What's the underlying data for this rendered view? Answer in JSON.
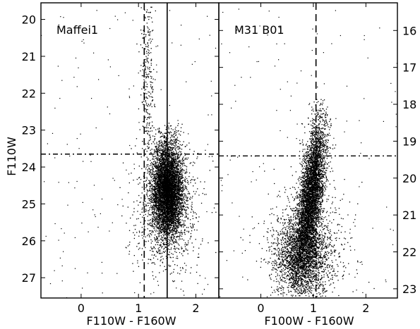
{
  "chart_data": [
    {
      "type": "scatter",
      "panel": "left",
      "title": "Maffei1",
      "xlabel": "F110W - F160W",
      "ylabel": "F110W",
      "xlim": [
        -0.7,
        2.4
      ],
      "ylim": [
        27.55,
        19.55
      ],
      "y_inverted": true,
      "xticks": [
        0,
        1,
        2
      ],
      "yticks": [
        20,
        21,
        22,
        23,
        24,
        25,
        26,
        27
      ],
      "y_axis_side": "left",
      "lines": [
        {
          "orientation": "vertical",
          "x": 1.1,
          "style": "dashed"
        },
        {
          "orientation": "vertical",
          "x": 1.5,
          "style": "solid"
        },
        {
          "orientation": "horizontal",
          "y": 23.65,
          "style": "dashdot"
        }
      ],
      "clusters": [
        {
          "cx": 1.5,
          "cy": 24.6,
          "sx": 0.13,
          "sy": 0.62,
          "n": 5600,
          "ymin": 22.8,
          "ymax": 26.7
        },
        {
          "cx": 1.5,
          "cy": 25.2,
          "sx": 0.3,
          "sy": 0.9,
          "n": 900,
          "ymin": 23.0,
          "ymax": 27.4
        },
        {
          "cx": 1.15,
          "cy": 21.8,
          "sx": 0.06,
          "sy": 1.3,
          "n": 260,
          "ymin": 19.6,
          "ymax": 23.5
        }
      ],
      "background_points": 160
    },
    {
      "type": "scatter",
      "panel": "right",
      "title": "M31 B01",
      "xlabel": "F100W - F160W",
      "ylabel": "",
      "xlim": [
        -0.8,
        2.6
      ],
      "ylim": [
        23.25,
        15.25
      ],
      "y_inverted": true,
      "xticks": [
        0,
        1,
        2
      ],
      "yticks": [
        16,
        17,
        18,
        19,
        20,
        21,
        22,
        23
      ],
      "y_axis_side": "right",
      "lines": [
        {
          "orientation": "vertical",
          "x": 1.05,
          "style": "dashed"
        },
        {
          "orientation": "horizontal",
          "y": 19.4,
          "style": "dashdot"
        }
      ],
      "clusters": [
        {
          "cx": 0.95,
          "cy": 20.4,
          "sx": 0.11,
          "sy": 0.95,
          "n": 4300,
          "ymin": 17.8,
          "ymax": 23.2,
          "slope": -0.085
        },
        {
          "cx": 0.78,
          "cy": 22.1,
          "sx": 0.26,
          "sy": 0.55,
          "n": 2300,
          "ymin": 20.6,
          "ymax": 23.2
        },
        {
          "cx": 0.9,
          "cy": 21.8,
          "sx": 0.45,
          "sy": 0.9,
          "n": 500,
          "ymin": 19.5,
          "ymax": 23.2
        }
      ],
      "background_points": 140
    }
  ]
}
